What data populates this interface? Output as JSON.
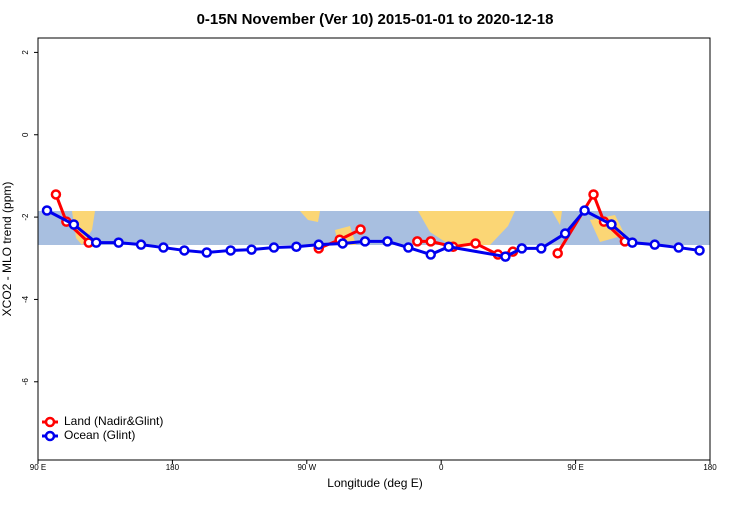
{
  "chart_data": {
    "type": "line",
    "title": "0-15N November (Ver 10)   2015-01-01 to 2020-12-18",
    "x_label": "Longitude (deg E)",
    "y_label": "XCO2 - MLO trend (ppm)",
    "xlim": [
      90,
      540
    ],
    "ylim": [
      -7.9,
      2.35
    ],
    "xticks": [
      {
        "value": 90,
        "label": "90 E"
      },
      180,
      {
        "value": 270,
        "label": "90 W"
      },
      {
        "value": 360,
        "label": "0"
      },
      {
        "value": 450,
        "label": "90 E"
      },
      {
        "value": 540,
        "label": "180"
      }
    ],
    "yticks": [
      -6,
      -4,
      -2,
      0,
      2
    ],
    "legend": "bottom-left",
    "series": [
      {
        "name": "Land (Nadir&Glint)",
        "color": "#ff0000",
        "x": [
          102,
          109,
          124,
          null,
          278,
          292,
          306,
          null,
          344,
          353,
          368,
          383,
          398,
          408,
          null,
          438,
          462,
          469,
          483
        ],
        "values": [
          -1.45,
          -2.11,
          -2.62,
          null,
          -2.76,
          -2.55,
          -2.3,
          null,
          -2.59,
          -2.59,
          -2.72,
          -2.64,
          -2.91,
          -2.84,
          null,
          -2.88,
          -1.45,
          -2.11,
          -2.59
        ]
      },
      {
        "name": "Ocean (Glint)",
        "color": "#0000ee",
        "x": [
          96,
          114,
          129,
          144,
          159,
          174,
          188,
          203,
          219,
          233,
          248,
          263,
          278,
          294,
          309,
          324,
          338,
          353,
          365,
          403,
          414,
          427,
          443,
          456,
          474,
          488,
          503,
          519,
          533
        ],
        "values": [
          -1.84,
          -2.18,
          -2.62,
          -2.62,
          -2.67,
          -2.74,
          -2.81,
          -2.86,
          -2.81,
          -2.79,
          -2.74,
          -2.72,
          -2.67,
          -2.64,
          -2.59,
          -2.59,
          -2.74,
          -2.91,
          -2.72,
          -2.96,
          -2.76,
          -2.76,
          -2.4,
          -1.84,
          -2.18,
          -2.62,
          -2.67,
          -2.74,
          -2.81
        ]
      }
    ]
  }
}
